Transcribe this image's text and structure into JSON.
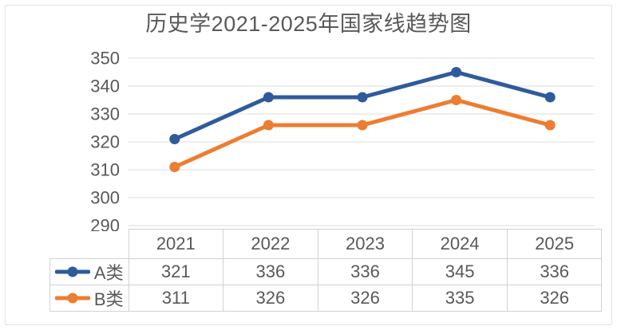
{
  "chart_data": {
    "type": "line",
    "title": "历史学2021-2025年国家线趋势图",
    "categories": [
      "2021",
      "2022",
      "2023",
      "2024",
      "2025"
    ],
    "series": [
      {
        "name": "A类",
        "values": [
          321,
          336,
          336,
          345,
          336
        ],
        "color": "#2f5b9c"
      },
      {
        "name": "B类",
        "values": [
          311,
          326,
          326,
          335,
          326
        ],
        "color": "#ed7d31"
      }
    ],
    "ylim": [
      290,
      350
    ],
    "yticks": [
      350,
      340,
      330,
      320,
      310,
      300,
      290
    ],
    "grid": true,
    "legend_position": "data-table-left",
    "data_table": true
  },
  "styles": {
    "text_color": "#595959",
    "gridline_color": "#e8e8e8",
    "table_border_color": "#d2d2d2",
    "frame_border_color": "#e3e3e3",
    "series_a_color": "#2f5b9c",
    "series_b_color": "#ed7d31",
    "background_color": "#ffffff"
  }
}
